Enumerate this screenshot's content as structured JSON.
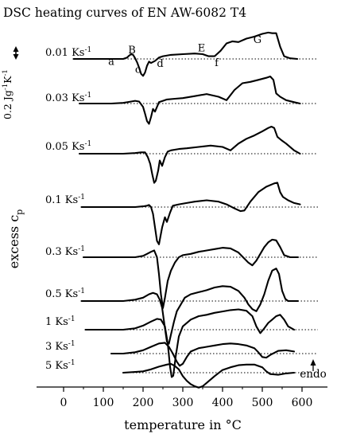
{
  "chart_data": {
    "type": "line",
    "title": "DSC heating curves of EN AW-6082 T4",
    "xlabel": "temperature in °C",
    "ylabel_main": "excess c",
    "ylabel_sub": "p",
    "xlim": [
      -35,
      625
    ],
    "xticks": [
      0,
      100,
      200,
      300,
      400,
      500,
      600
    ],
    "scale_bar": {
      "value": 0.2,
      "text": "0.2 Jg",
      "sup1": "-1",
      "mid": "K",
      "sup2": "-1"
    },
    "endo_label": "endo",
    "peak_labels": [
      {
        "text": "a",
        "x": 120,
        "level": -0.04
      },
      {
        "text": "B",
        "x": 172,
        "level": 0.13
      },
      {
        "text": "c",
        "x": 187,
        "level": -0.16
      },
      {
        "text": "d",
        "x": 243,
        "level": -0.07
      },
      {
        "text": "E",
        "x": 347,
        "level": 0.16
      },
      {
        "text": "f",
        "x": 385,
        "level": -0.06
      },
      {
        "text": "G",
        "x": 488,
        "level": 0.28
      }
    ],
    "series": [
      {
        "rate": "0.01 Ks",
        "unit_sup": "-1",
        "offset": 0,
        "x": [
          25,
          60,
          100,
          130,
          150,
          160,
          165,
          170,
          175,
          180,
          185,
          190,
          195,
          200,
          205,
          210,
          215,
          220,
          230,
          240,
          250,
          270,
          300,
          330,
          350,
          365,
          380,
          395,
          410,
          425,
          440,
          460,
          480,
          500,
          515,
          525,
          535,
          545,
          555,
          570,
          588
        ],
        "y": [
          0,
          0,
          0,
          0,
          0,
          0.02,
          0.05,
          0.07,
          0.06,
          0.01,
          -0.05,
          -0.13,
          -0.22,
          -0.25,
          -0.2,
          -0.1,
          -0.04,
          -0.06,
          -0.03,
          0.02,
          0.04,
          0.06,
          0.07,
          0.08,
          0.07,
          0.04,
          0.04,
          0.12,
          0.23,
          0.26,
          0.25,
          0.3,
          0.33,
          0.37,
          0.39,
          0.38,
          0.38,
          0.18,
          0.04,
          0.01,
          0
        ]
      },
      {
        "rate": "0.03 Ks",
        "unit_sup": "-1",
        "offset": 0,
        "x": [
          40,
          80,
          120,
          150,
          170,
          180,
          190,
          200,
          205,
          210,
          215,
          220,
          225,
          230,
          235,
          240,
          250,
          260,
          280,
          300,
          330,
          360,
          390,
          410,
          430,
          450,
          470,
          490,
          510,
          520,
          528,
          535,
          545,
          560,
          580,
          595
        ],
        "y": [
          0,
          0,
          0,
          0.01,
          0.03,
          0.04,
          0.03,
          -0.05,
          -0.15,
          -0.26,
          -0.3,
          -0.2,
          -0.08,
          -0.12,
          -0.05,
          0.02,
          0.04,
          0.06,
          0.07,
          0.08,
          0.11,
          0.14,
          0.1,
          0.05,
          0.2,
          0.3,
          0.32,
          0.35,
          0.38,
          0.4,
          0.35,
          0.15,
          0.1,
          0.05,
          0.02,
          0
        ]
      },
      {
        "rate": "0.05 Ks",
        "unit_sup": "-1",
        "offset": 0,
        "x": [
          40,
          80,
          120,
          150,
          180,
          195,
          205,
          212,
          218,
          223,
          228,
          232,
          238,
          242,
          248,
          255,
          262,
          270,
          290,
          310,
          340,
          370,
          400,
          420,
          440,
          460,
          480,
          500,
          515,
          523,
          530,
          538,
          548,
          560,
          580,
          595
        ],
        "y": [
          0,
          0,
          0,
          0,
          0.01,
          0.02,
          0.02,
          -0.05,
          -0.15,
          -0.3,
          -0.43,
          -0.4,
          -0.25,
          -0.1,
          -0.18,
          -0.05,
          0.03,
          0.05,
          0.07,
          0.08,
          0.1,
          0.12,
          0.1,
          0.05,
          0.15,
          0.22,
          0.27,
          0.33,
          0.38,
          0.4,
          0.38,
          0.25,
          0.2,
          0.15,
          0.05,
          0
        ]
      },
      {
        "rate": "0.1 Ks",
        "unit_sup": "-1",
        "offset": 0,
        "x": [
          45,
          80,
          120,
          150,
          180,
          200,
          210,
          215,
          220,
          225,
          230,
          235,
          240,
          248,
          255,
          260,
          268,
          275,
          290,
          310,
          330,
          360,
          390,
          410,
          430,
          445,
          455,
          470,
          490,
          510,
          530,
          538,
          545,
          552,
          565,
          580,
          595
        ],
        "y": [
          0,
          0,
          0,
          0,
          0,
          0.01,
          0.02,
          0.03,
          0,
          -0.1,
          -0.3,
          -0.5,
          -0.55,
          -0.3,
          -0.15,
          -0.22,
          -0.08,
          0.02,
          0.04,
          0.06,
          0.08,
          0.1,
          0.08,
          0.04,
          -0.02,
          -0.06,
          -0.05,
          0.08,
          0.22,
          0.3,
          0.35,
          0.36,
          0.22,
          0.15,
          0.1,
          0.06,
          0.04
        ]
      },
      {
        "rate": "0.3 Ks",
        "unit_sup": "-1",
        "offset": 0,
        "x": [
          50,
          100,
          150,
          180,
          200,
          210,
          220,
          228,
          235,
          240,
          245,
          250,
          255,
          262,
          270,
          280,
          290,
          300,
          320,
          340,
          360,
          380,
          400,
          420,
          440,
          455,
          465,
          475,
          485,
          495,
          505,
          515,
          525,
          535,
          545,
          555,
          570,
          590
        ],
        "y": [
          0,
          0,
          0,
          0,
          0.02,
          0.05,
          0.08,
          0.1,
          0,
          -0.25,
          -0.55,
          -0.75,
          -0.6,
          -0.35,
          -0.2,
          -0.08,
          0,
          0.03,
          0.05,
          0.08,
          0.1,
          0.12,
          0.14,
          0.13,
          0.07,
          -0.02,
          -0.08,
          -0.12,
          -0.05,
          0.05,
          0.15,
          0.22,
          0.26,
          0.25,
          0.15,
          0.03,
          0,
          0
        ]
      },
      {
        "rate": "0.5 Ks",
        "unit_sup": "-1",
        "offset": 0,
        "x": [
          45,
          100,
          150,
          180,
          200,
          215,
          225,
          235,
          242,
          248,
          255,
          260,
          265,
          270,
          278,
          285,
          295,
          305,
          320,
          340,
          360,
          380,
          400,
          420,
          440,
          455,
          465,
          475,
          485,
          495,
          505,
          515,
          525,
          535,
          542,
          550,
          558,
          565,
          580,
          590
        ],
        "y": [
          0,
          0,
          0,
          0.02,
          0.05,
          0.1,
          0.12,
          0.1,
          0.02,
          -0.1,
          -0.4,
          -0.6,
          -0.63,
          -0.5,
          -0.3,
          -0.15,
          -0.05,
          0.05,
          0.1,
          0.13,
          0.16,
          0.2,
          0.22,
          0.21,
          0.15,
          0.05,
          -0.05,
          -0.12,
          -0.15,
          -0.05,
          0.1,
          0.3,
          0.45,
          0.48,
          0.4,
          0.15,
          0.03,
          0,
          0,
          0
        ]
      },
      {
        "rate": "1 Ks",
        "unit_sup": "-1",
        "offset": 0,
        "x": [
          55,
          100,
          150,
          180,
          200,
          220,
          235,
          245,
          255,
          262,
          268,
          272,
          276,
          282,
          290,
          300,
          320,
          340,
          360,
          380,
          400,
          420,
          440,
          460,
          475,
          485,
          495,
          505,
          515,
          525,
          535,
          545,
          555,
          565,
          580
        ],
        "y": [
          0,
          0,
          0,
          0.02,
          0.06,
          0.12,
          0.16,
          0.15,
          0.05,
          -0.2,
          -0.55,
          -0.7,
          -0.68,
          -0.4,
          -0.1,
          0.05,
          0.15,
          0.2,
          0.22,
          0.25,
          0.27,
          0.29,
          0.3,
          0.28,
          0.2,
          0.05,
          -0.05,
          0.02,
          0.1,
          0.15,
          0.2,
          0.22,
          0.15,
          0.05,
          0
        ]
      },
      {
        "rate": "3 Ks",
        "unit_sup": "-1",
        "offset": 0,
        "x": [
          120,
          150,
          180,
          200,
          220,
          240,
          255,
          265,
          275,
          285,
          292,
          300,
          310,
          320,
          340,
          360,
          380,
          400,
          420,
          440,
          460,
          480,
          490,
          500,
          510,
          520,
          540,
          560,
          580
        ],
        "y": [
          0,
          0,
          0.02,
          0.05,
          0.1,
          0.15,
          0.16,
          0.1,
          0,
          -0.12,
          -0.18,
          -0.15,
          -0.05,
          0.03,
          0.08,
          0.1,
          0.12,
          0.14,
          0.15,
          0.14,
          0.12,
          0.08,
          0.02,
          -0.05,
          -0.06,
          -0.02,
          0.04,
          0.05,
          0.03
        ]
      },
      {
        "rate": "5 Ks",
        "unit_sup": "-1",
        "offset": 0,
        "x": [
          150,
          180,
          200,
          220,
          240,
          260,
          270,
          280,
          290,
          300,
          310,
          320,
          330,
          340,
          350,
          360,
          380,
          400,
          420,
          440,
          460,
          480,
          500,
          510,
          520,
          540,
          560,
          580
        ],
        "y": [
          0,
          0.01,
          0.02,
          0.05,
          0.09,
          0.12,
          0.13,
          0.1,
          0.05,
          -0.05,
          -0.12,
          -0.17,
          -0.2,
          -0.22,
          -0.2,
          -0.15,
          -0.05,
          0.04,
          0.08,
          0.11,
          0.12,
          0.12,
          0.08,
          0.02,
          -0.02,
          -0.03,
          -0.01,
          0
        ]
      }
    ]
  }
}
